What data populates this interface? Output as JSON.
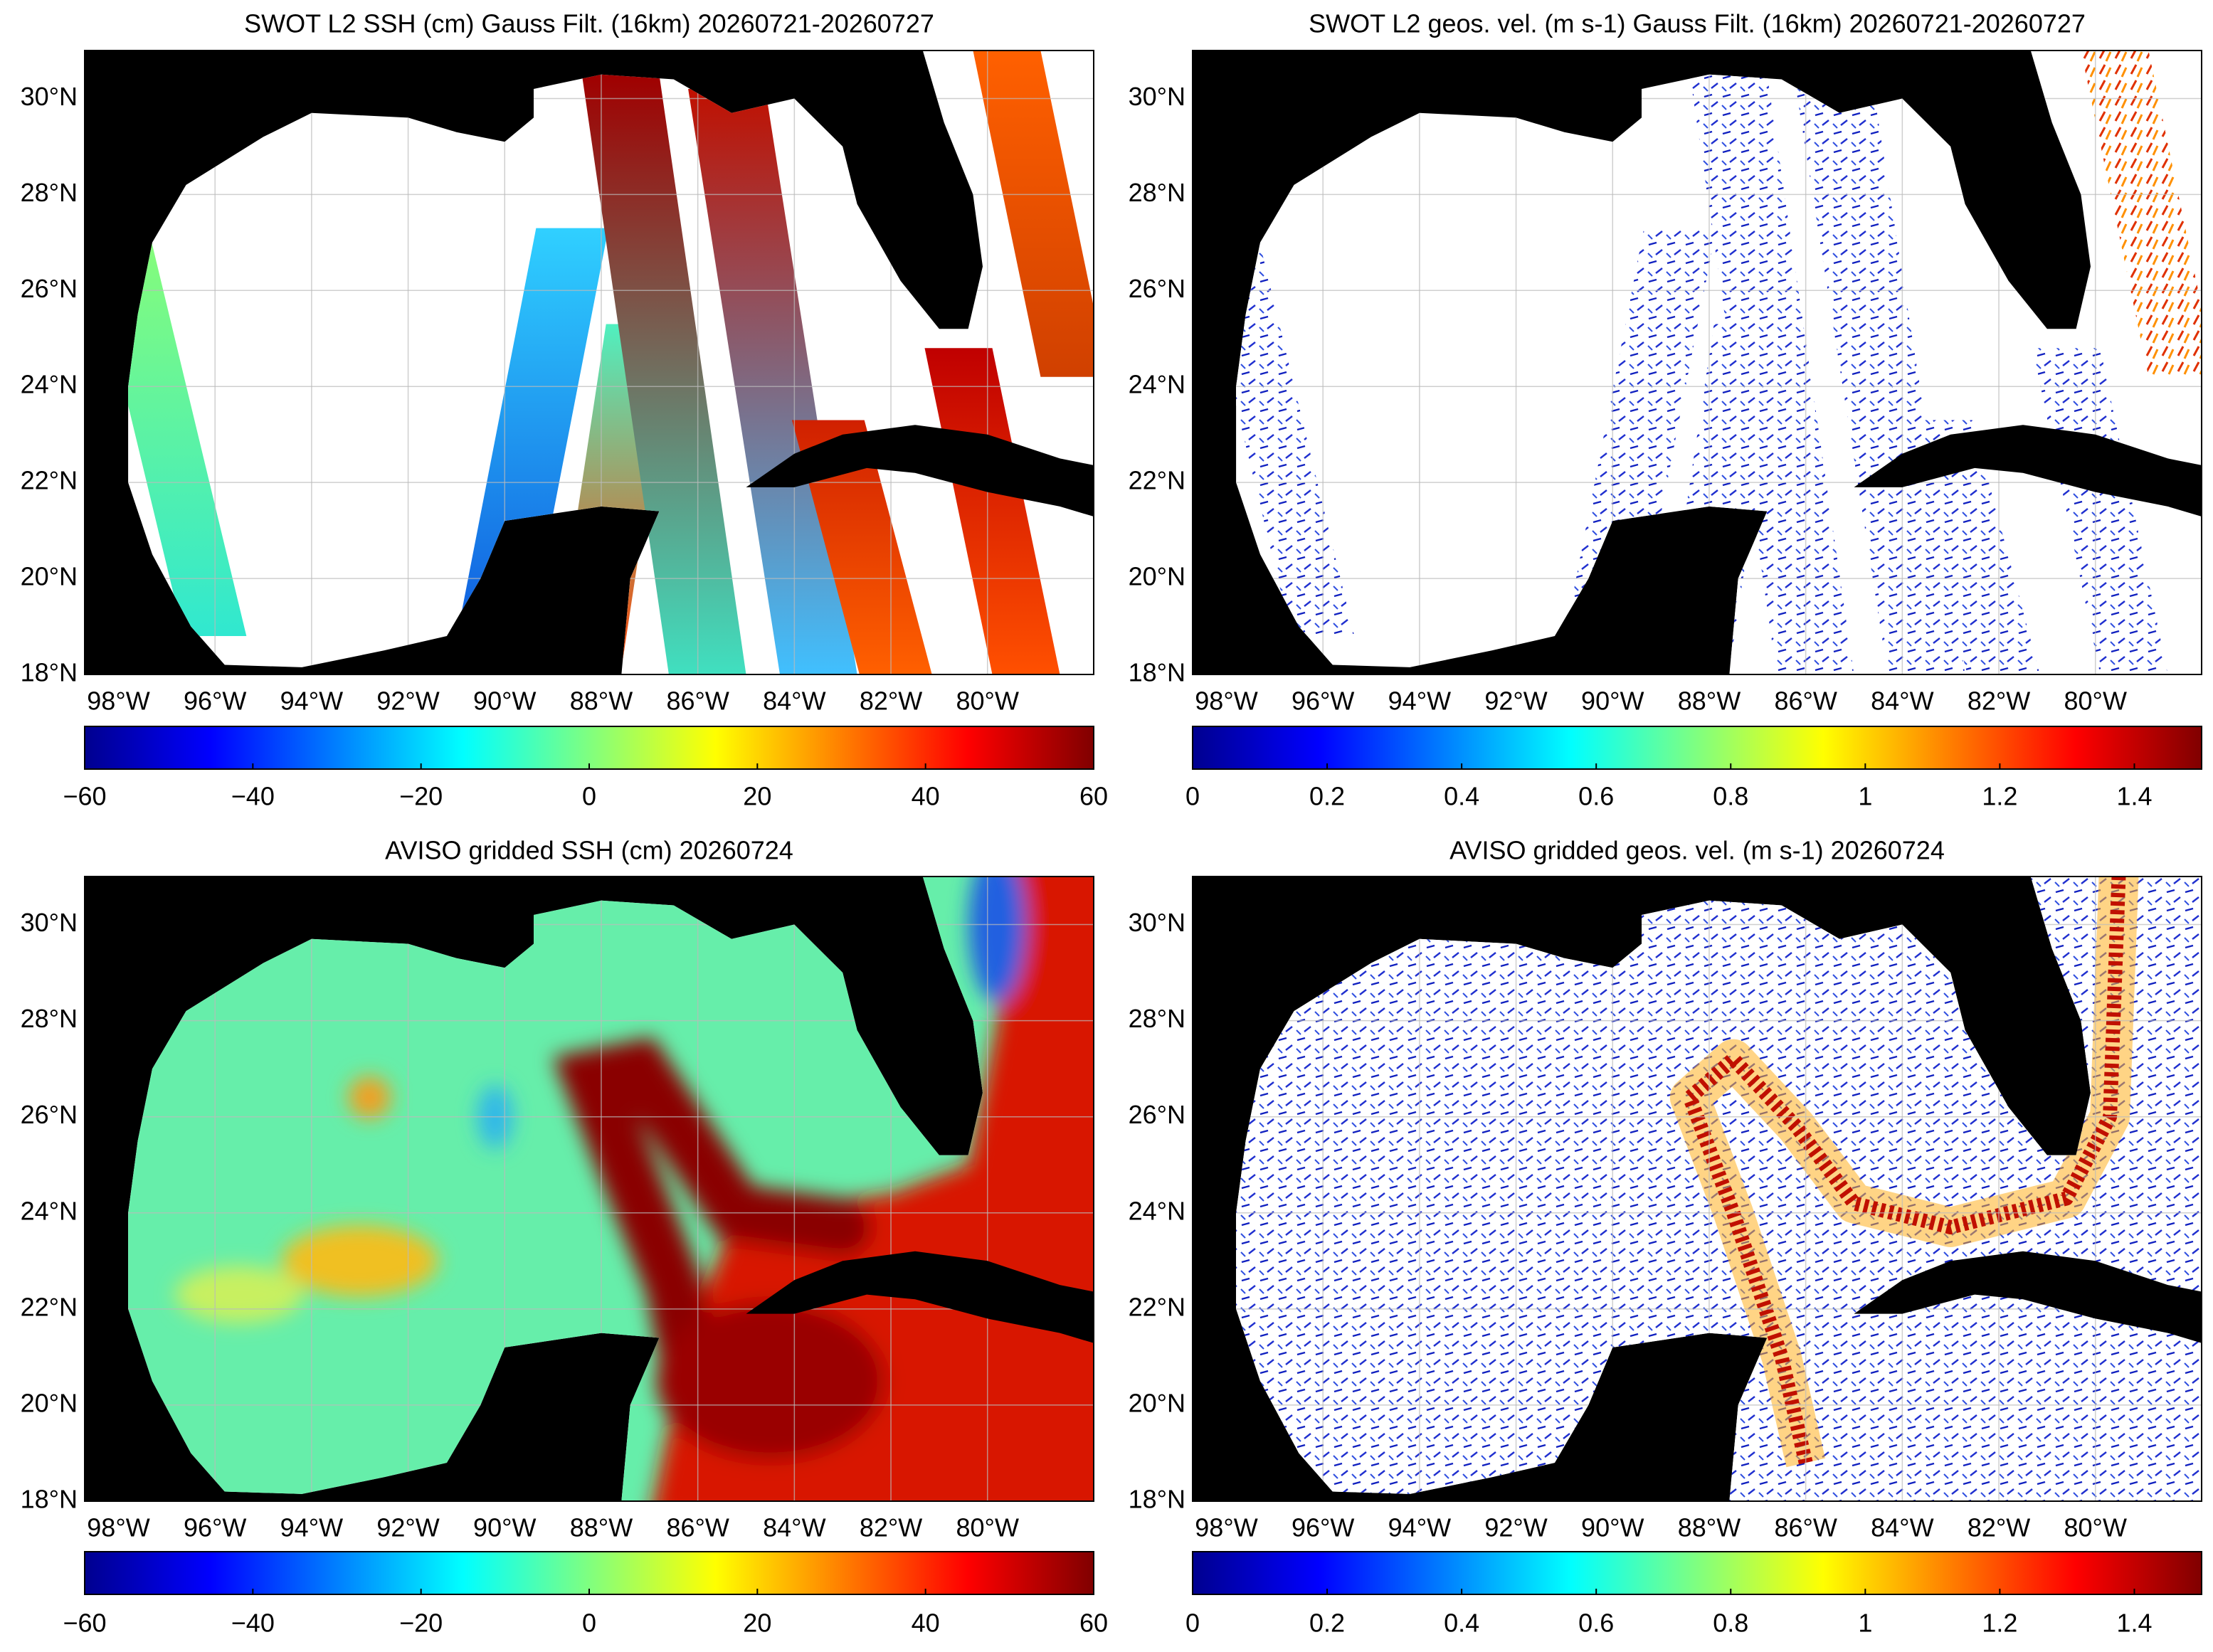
{
  "maps": [
    {
      "type": "ssh-swath",
      "title": "SWOT L2 SSH (cm) Gauss Filt. (16km) 20260721-20260727",
      "xlim": [
        -98.7,
        -77.8
      ],
      "ylim": [
        18,
        31
      ],
      "xticks": [
        {
          "value": -98,
          "label": "98°W"
        },
        {
          "value": -96,
          "label": "96°W"
        },
        {
          "value": -94,
          "label": "94°W"
        },
        {
          "value": -92,
          "label": "92°W"
        },
        {
          "value": -90,
          "label": "90°W"
        },
        {
          "value": -88,
          "label": "88°W"
        },
        {
          "value": -86,
          "label": "86°W"
        },
        {
          "value": -84,
          "label": "84°W"
        },
        {
          "value": -82,
          "label": "82°W"
        },
        {
          "value": -80,
          "label": "80°W"
        }
      ],
      "yticks": [
        {
          "value": 18,
          "label": "18°N"
        },
        {
          "value": 20,
          "label": "20°N"
        },
        {
          "value": 22,
          "label": "22°N"
        },
        {
          "value": 24,
          "label": "24°N"
        },
        {
          "value": 26,
          "label": "26°N"
        },
        {
          "value": 28,
          "label": "28°N"
        },
        {
          "value": 30,
          "label": "30°N"
        }
      ],
      "colorbar": {
        "lim": [
          -60,
          60
        ],
        "ticks": [
          {
            "value": -60,
            "label": "−60"
          },
          {
            "value": -40,
            "label": "−40"
          },
          {
            "value": -20,
            "label": "−20"
          },
          0,
          20,
          40,
          60
        ]
      }
    },
    {
      "type": "velocity-swath",
      "title": "SWOT L2 geos. vel. (m s-1) Gauss Filt. (16km) 20260721-20260727",
      "xlim": [
        -98.7,
        -77.8
      ],
      "ylim": [
        18,
        31
      ],
      "xticks": [
        {
          "value": -98,
          "label": "98°W"
        },
        {
          "value": -96,
          "label": "96°W"
        },
        {
          "value": -94,
          "label": "94°W"
        },
        {
          "value": -92,
          "label": "92°W"
        },
        {
          "value": -90,
          "label": "90°W"
        },
        {
          "value": -88,
          "label": "88°W"
        },
        {
          "value": -86,
          "label": "86°W"
        },
        {
          "value": -84,
          "label": "84°W"
        },
        {
          "value": -82,
          "label": "82°W"
        },
        {
          "value": -80,
          "label": "80°W"
        }
      ],
      "yticks": [
        {
          "value": 18,
          "label": "18°N"
        },
        {
          "value": 20,
          "label": "20°N"
        },
        {
          "value": 22,
          "label": "22°N"
        },
        {
          "value": 24,
          "label": "24°N"
        },
        {
          "value": 26,
          "label": "26°N"
        },
        {
          "value": 28,
          "label": "28°N"
        },
        {
          "value": 30,
          "label": "30°N"
        }
      ],
      "colorbar": {
        "lim": [
          0,
          1.5
        ],
        "ticks": [
          0,
          0.2,
          0.4,
          0.6,
          0.8,
          1,
          1.2,
          1.4
        ]
      }
    },
    {
      "type": "ssh-gridded",
      "title": "AVISO gridded SSH (cm) 20260724",
      "xlim": [
        -98.7,
        -77.8
      ],
      "ylim": [
        18,
        31
      ],
      "xticks": [
        {
          "value": -98,
          "label": "98°W"
        },
        {
          "value": -96,
          "label": "96°W"
        },
        {
          "value": -94,
          "label": "94°W"
        },
        {
          "value": -92,
          "label": "92°W"
        },
        {
          "value": -90,
          "label": "90°W"
        },
        {
          "value": -88,
          "label": "88°W"
        },
        {
          "value": -86,
          "label": "86°W"
        },
        {
          "value": -84,
          "label": "84°W"
        },
        {
          "value": -82,
          "label": "82°W"
        },
        {
          "value": -80,
          "label": "80°W"
        }
      ],
      "yticks": [
        {
          "value": 18,
          "label": "18°N"
        },
        {
          "value": 20,
          "label": "20°N"
        },
        {
          "value": 22,
          "label": "22°N"
        },
        {
          "value": 24,
          "label": "24°N"
        },
        {
          "value": 26,
          "label": "26°N"
        },
        {
          "value": 28,
          "label": "28°N"
        },
        {
          "value": 30,
          "label": "30°N"
        }
      ],
      "colorbar": {
        "lim": [
          -60,
          60
        ],
        "ticks": [
          {
            "value": -60,
            "label": "−60"
          },
          {
            "value": -40,
            "label": "−40"
          },
          {
            "value": -20,
            "label": "−20"
          },
          0,
          20,
          40,
          60
        ]
      }
    },
    {
      "type": "velocity-gridded",
      "title": "AVISO gridded geos. vel. (m s-1)  20260724",
      "xlim": [
        -98.7,
        -77.8
      ],
      "ylim": [
        18,
        31
      ],
      "xticks": [
        {
          "value": -98,
          "label": "98°W"
        },
        {
          "value": -96,
          "label": "96°W"
        },
        {
          "value": -94,
          "label": "94°W"
        },
        {
          "value": -92,
          "label": "92°W"
        },
        {
          "value": -90,
          "label": "90°W"
        },
        {
          "value": -88,
          "label": "88°W"
        },
        {
          "value": -86,
          "label": "86°W"
        },
        {
          "value": -84,
          "label": "84°W"
        },
        {
          "value": -82,
          "label": "82°W"
        },
        {
          "value": -80,
          "label": "80°W"
        }
      ],
      "yticks": [
        {
          "value": 18,
          "label": "18°N"
        },
        {
          "value": 20,
          "label": "20°N"
        },
        {
          "value": 22,
          "label": "22°N"
        },
        {
          "value": 24,
          "label": "24°N"
        },
        {
          "value": 26,
          "label": "26°N"
        },
        {
          "value": 28,
          "label": "28°N"
        },
        {
          "value": 30,
          "label": "30°N"
        }
      ],
      "colorbar": {
        "lim": [
          0,
          1.5
        ],
        "ticks": [
          0,
          0.2,
          0.4,
          0.6,
          0.8,
          1,
          1.2,
          1.4
        ]
      }
    }
  ]
}
